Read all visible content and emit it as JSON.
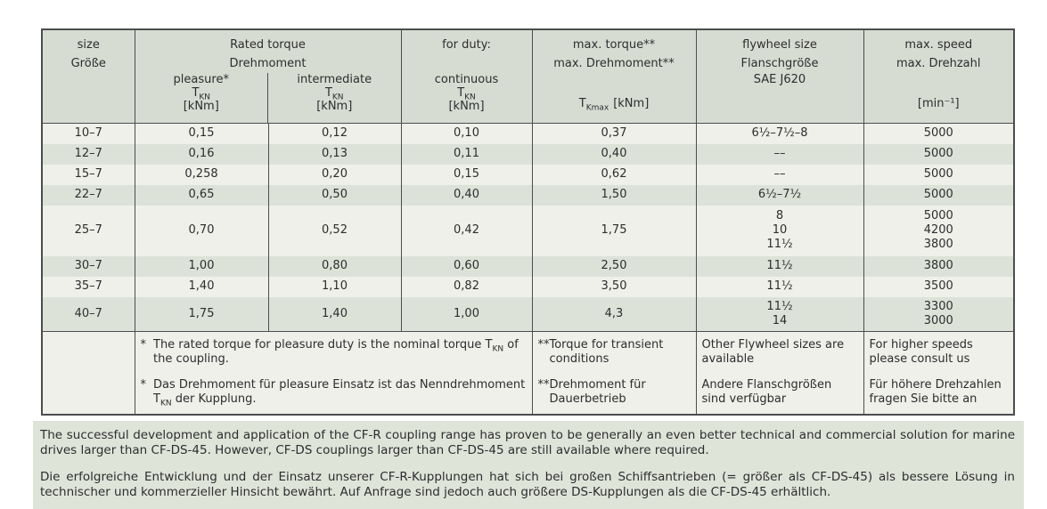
{
  "colors": {
    "border": "#4c4d4f",
    "header_bg": "#d7dcd2",
    "row_light": "#eef0e9",
    "row_dark": "#dde2d8",
    "notes_bg": "#dfe4d9",
    "text": "#2d2d2f"
  },
  "table": {
    "header": {
      "size_en": "size",
      "size_de": "Größe",
      "rated_en": "Rated torque",
      "rated_de": "Drehmoment",
      "duty_label": "for duty:",
      "col_pleasure": "pleasure*",
      "col_intermediate": "intermediate",
      "col_continuous": "continuous",
      "t_symbol": "T",
      "t_sub_kn": "KN",
      "t_sub_kmax": "Kmax",
      "unit_knm": "[kNm]",
      "max_torque_en": "max. torque**",
      "max_torque_de": "max. Drehmoment**",
      "flywheel_en": "flywheel size",
      "flywheel_de": "Flanschgröße",
      "flywheel_standard": "SAE J620",
      "max_speed_en": "max. speed",
      "max_speed_de": "max. Drehzahl",
      "unit_speed": "[min⁻¹]"
    },
    "rows": [
      {
        "size": "10–7",
        "pleasure": "0,15",
        "intermediate": "0,12",
        "continuous": "0,10",
        "max_torque": "0,37",
        "flywheel": "6½–7½–8",
        "max_speed": "5000"
      },
      {
        "size": "12–7",
        "pleasure": "0,16",
        "intermediate": "0,13",
        "continuous": "0,11",
        "max_torque": "0,40",
        "flywheel": "––",
        "max_speed": "5000"
      },
      {
        "size": "15–7",
        "pleasure": "0,258",
        "intermediate": "0,20",
        "continuous": "0,15",
        "max_torque": "0,62",
        "flywheel": "––",
        "max_speed": "5000"
      },
      {
        "size": "22–7",
        "pleasure": "0,65",
        "intermediate": "0,50",
        "continuous": "0,40",
        "max_torque": "1,50",
        "flywheel": "6½–7½",
        "max_speed": "5000"
      },
      {
        "size": "25–7",
        "pleasure": "0,70",
        "intermediate": "0,52",
        "continuous": "0,42",
        "max_torque": "1,75",
        "flywheel": "8\n10\n11½",
        "max_speed": "5000\n4200\n3800"
      },
      {
        "size": "30–7",
        "pleasure": "1,00",
        "intermediate": "0,80",
        "continuous": "0,60",
        "max_torque": "2,50",
        "flywheel": "11½",
        "max_speed": "3800"
      },
      {
        "size": "35–7",
        "pleasure": "1,40",
        "intermediate": "1,10",
        "continuous": "0,82",
        "max_torque": "3,50",
        "flywheel": "11½",
        "max_speed": "3500"
      },
      {
        "size": "40–7",
        "pleasure": "1,75",
        "intermediate": "1,40",
        "continuous": "1,00",
        "max_torque": "4,3",
        "flywheel": "11½\n14",
        "max_speed": "3300\n3000"
      }
    ],
    "footnotes": {
      "rated_star": "*",
      "rated_en_pre": "The rated torque for pleasure duty is the nominal torque T",
      "rated_en_sub": "KN",
      "rated_en_post": " of the coupling.",
      "rated_de_pre": "Das Drehmoment für pleasure Einsatz ist das Nenndrehmoment T",
      "rated_de_sub": "KN",
      "rated_de_post": " der Kupplung.",
      "torque_stars": "**",
      "torque_en": "Torque for transient conditions",
      "torque_de": "Drehmoment für Dauerbetrieb",
      "flywheel_en": "Other Flywheel sizes are available",
      "flywheel_de": "Andere Flanschgrößen sind verfügbar",
      "speed_en": "For higher speeds please consult us",
      "speed_de": "Für höhere Drehzahlen fragen Sie bitte an"
    }
  },
  "notes": {
    "en": "The successful development and application of the CF-R coupling range has proven to be generally an even better technical and commercial solution for marine drives larger than CF-DS-45. However, CF-DS couplings larger than CF-DS-45 are still available where required.",
    "de": "Die erfolgreiche Entwicklung und der Einsatz unserer CF-R-Kupplungen hat sich bei großen Schiffsantrieben (= größer als CF-DS-45) als bessere Lösung in technischer und kommerzieller Hinsicht bewährt. Auf Anfrage sind jedoch auch größere DS-Kupplungen als die CF-DS-45 erhältlich."
  }
}
